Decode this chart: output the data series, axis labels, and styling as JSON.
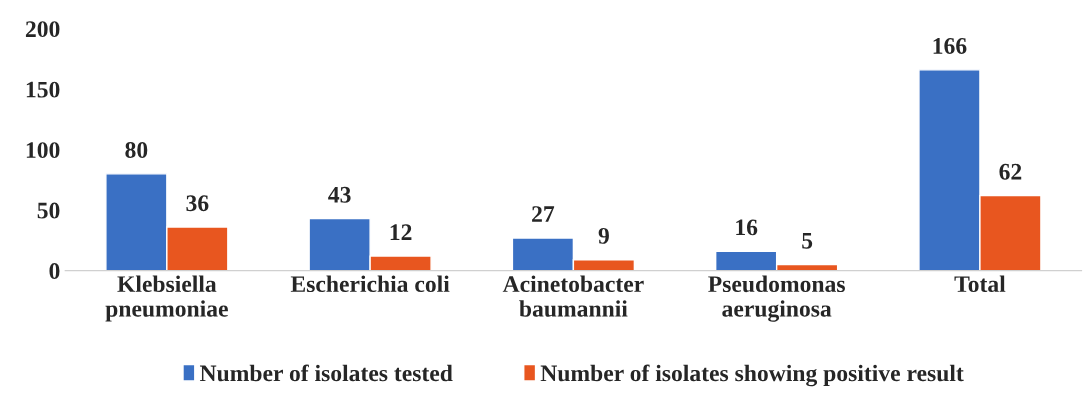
{
  "chart_data": {
    "type": "bar",
    "categories": [
      "Klebsiella\npneumoniae",
      "Escherichia coli",
      "Acinetobacter\nbaumannii",
      "Pseudomonas\naeruginosa",
      "Total"
    ],
    "series": [
      {
        "name": "Number of isolates tested",
        "color": "#3a70c4",
        "values": [
          80,
          43,
          27,
          16,
          166
        ]
      },
      {
        "name": "Number of isolates showing positive result",
        "color": "#e8561f",
        "values": [
          36,
          12,
          9,
          5,
          62
        ]
      }
    ],
    "ylim": [
      0,
      200
    ],
    "yticks": [
      0,
      50,
      100,
      150,
      200
    ],
    "data_labels": true,
    "grid": false,
    "legend": "bottom"
  }
}
